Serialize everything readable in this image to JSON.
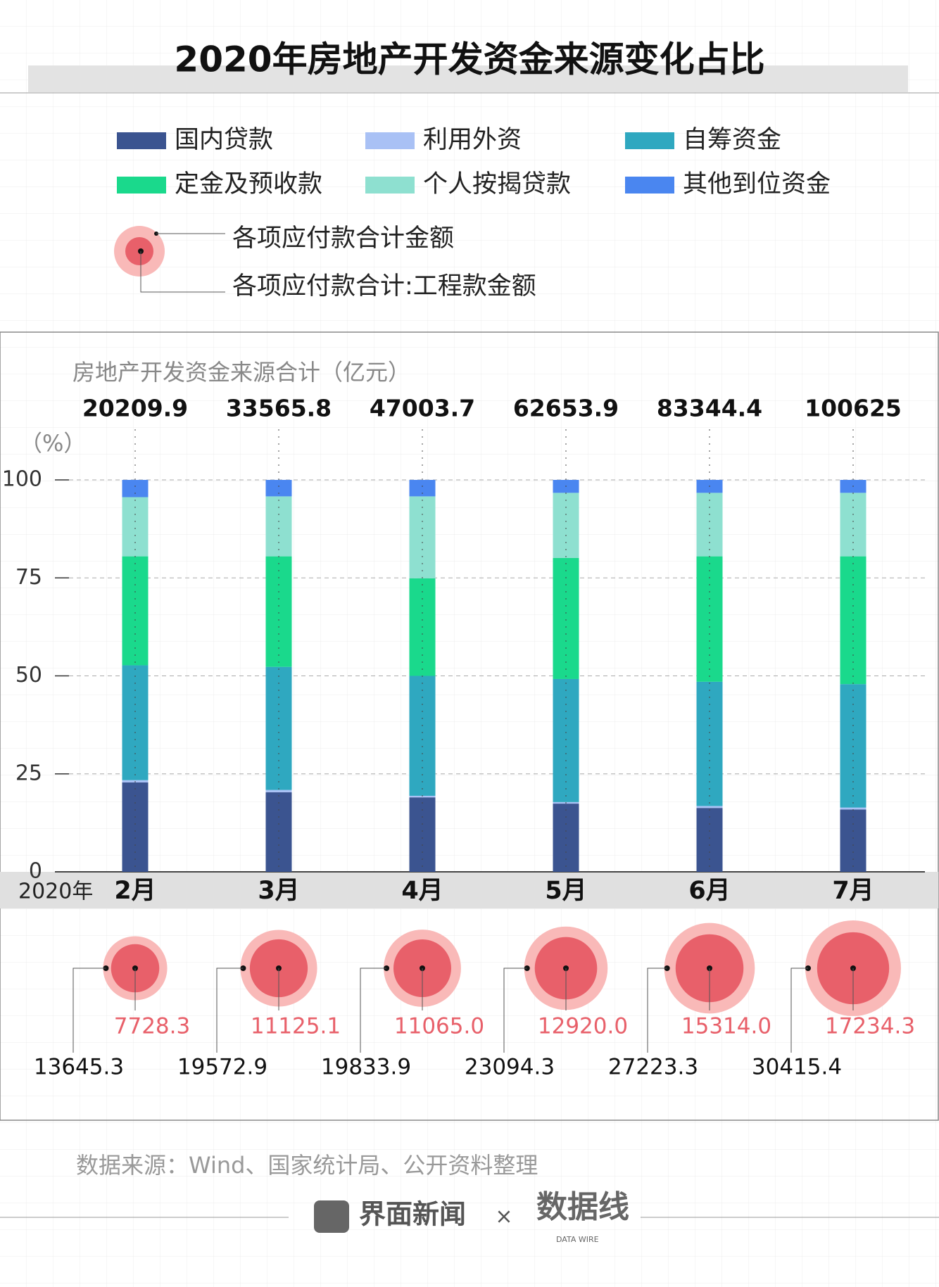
{
  "chart_data": {
    "type": "stacked-bar",
    "title": "2020年房地产开发资金来源变化占比",
    "x_prefix": "2020年",
    "categories": [
      "2月",
      "3月",
      "4月",
      "5月",
      "6月",
      "7月"
    ],
    "y_unit": "（%）",
    "ylim": [
      0,
      100
    ],
    "yticks": [
      0,
      25,
      50,
      75,
      100
    ],
    "grid": true,
    "series": [
      {
        "name": "国内贷款",
        "color": "#3b5490",
        "values": [
          22.8,
          20.3,
          19.0,
          17.4,
          16.3,
          15.9
        ]
      },
      {
        "name": "利用外资",
        "color": "#a9c1f5",
        "values": [
          0.6,
          0.6,
          0.4,
          0.4,
          0.5,
          0.5
        ]
      },
      {
        "name": "自筹资金",
        "color": "#2fa8c0",
        "values": [
          29.3,
          31.4,
          30.6,
          31.4,
          31.7,
          31.5
        ]
      },
      {
        "name": "定金及预收款",
        "color": "#1ad98c",
        "values": [
          27.8,
          28.2,
          24.9,
          30.9,
          32.0,
          32.6
        ]
      },
      {
        "name": "个人按揭贷款",
        "color": "#8ee0d0",
        "values": [
          15.1,
          15.3,
          20.9,
          16.6,
          16.2,
          16.2
        ]
      },
      {
        "name": "其他到位资金",
        "color": "#4a86f0",
        "values": [
          4.4,
          4.2,
          4.2,
          3.3,
          3.3,
          3.3
        ]
      }
    ],
    "totals": {
      "label": "房地产开发资金来源合计（亿元）",
      "values": [
        20209.9,
        33565.8,
        47003.7,
        62653.9,
        83344.4,
        100625
      ]
    },
    "bubbles": [
      {
        "name": "各项应付款合计金额",
        "color": "#f9b9b8",
        "values": [
          13645.3,
          19572.9,
          19833.9,
          23094.3,
          27223.3,
          30415.4
        ],
        "value_labels": [
          "13645.3",
          "19572.9",
          "19833.9",
          "23094.3",
          "27223.3",
          "30415.4"
        ]
      },
      {
        "name": "各项应付款合计:工程款金额",
        "color": "#e8606a",
        "values": [
          7728.3,
          11125.1,
          11065.0,
          12920.0,
          15314.0,
          17234.3
        ],
        "value_labels": [
          "7728.3",
          "11125.1",
          "11065.0",
          "12920.0",
          "15314.0",
          "17234.3"
        ]
      }
    ]
  },
  "footer": {
    "source": "数据来源：Wind、国家统计局、公开资料整理",
    "brand": "界面新闻",
    "times": "×",
    "partner": "数据线",
    "partner_sub": "DATA WIRE"
  }
}
